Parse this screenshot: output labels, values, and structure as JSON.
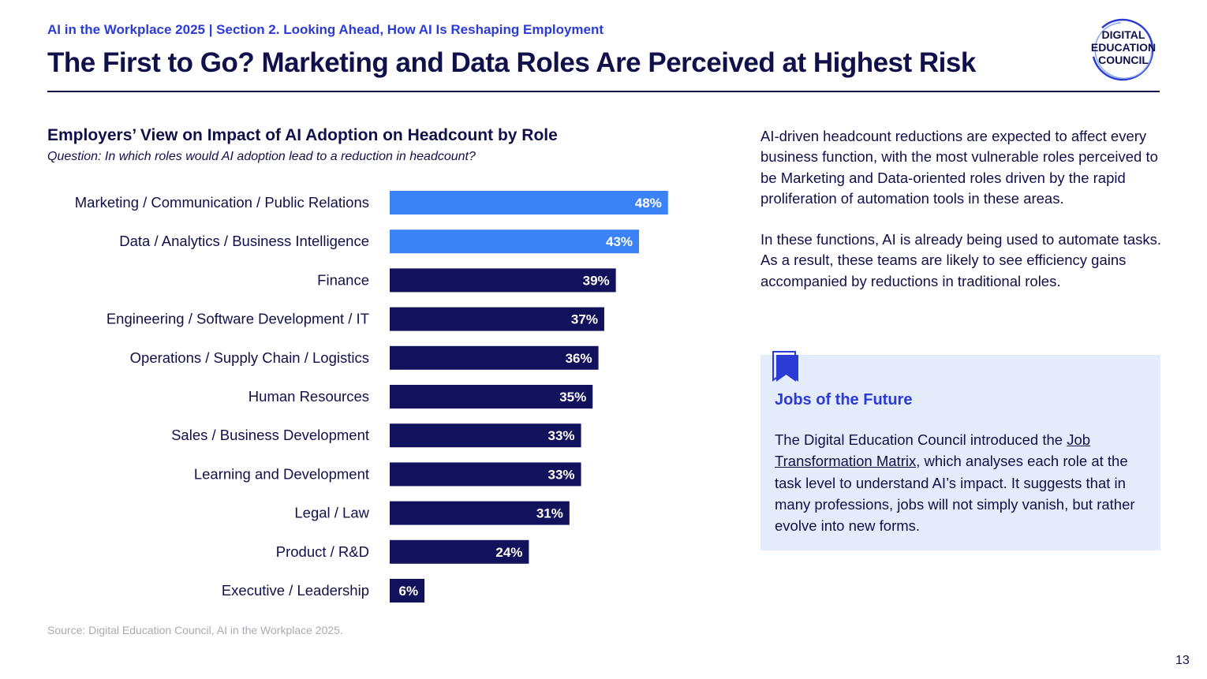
{
  "header": {
    "breadcrumb": "AI in the Workplace 2025 | Section 2. Looking Ahead, How AI Is Reshaping Employment",
    "title": "The First to Go? Marketing and Data Roles Are Perceived at Highest Risk"
  },
  "logo": {
    "line1": "DIGITAL",
    "line2": "EDUCATION",
    "line3": "COUNCIL"
  },
  "chart_data": {
    "type": "bar",
    "orientation": "horizontal",
    "title": "Employers’ View on Impact of AI Adoption on Headcount by Role",
    "subtitle": "Question: In which roles would AI adoption lead to a reduction in headcount?",
    "xlabel": "",
    "ylabel": "",
    "xlim": [
      0,
      100
    ],
    "grid": false,
    "categories": [
      "Marketing / Communication / Public Relations",
      "Data / Analytics / Business Intelligence",
      "Finance",
      "Engineering / Software Development / IT",
      "Operations / Supply Chain / Logistics",
      "Human Resources",
      "Sales / Business Development",
      "Learning and Development",
      "Legal / Law",
      "Product / R&D",
      "Executive / Leadership"
    ],
    "values": [
      48,
      43,
      39,
      37,
      36,
      35,
      33,
      33,
      31,
      24,
      6
    ],
    "data_labels": [
      "48%",
      "43%",
      "39%",
      "37%",
      "36%",
      "35%",
      "33%",
      "33%",
      "31%",
      "24%",
      "6%"
    ],
    "highlighted": [
      true,
      true,
      false,
      false,
      false,
      false,
      false,
      false,
      false,
      false,
      false
    ],
    "colors": {
      "highlight": "#3b82f6",
      "default": "#12125c",
      "label": "#ffffff",
      "category": "#10104a"
    },
    "source": "Source: Digital Education Council, AI in the Workplace 2025."
  },
  "body": {
    "paragraph1": "AI-driven headcount reductions are expected to affect every business function, with the most vulnerable roles perceived to be Marketing and Data-oriented roles driven by the rapid proliferation of automation tools in these areas.",
    "paragraph2": "In these functions, AI is already being used to automate tasks. As a result, these teams are likely to see efficiency gains accompanied by reductions in traditional roles."
  },
  "callout": {
    "icon": "bookmark-icon",
    "title": "Jobs of the Future",
    "text_before": "The Digital Education Council introduced the ",
    "link": "Job Transformation Matrix",
    "text_after": ", which analyses each role at the task level to understand AI’s impact. It suggests that in many professions, jobs will not simply vanish, but rather evolve into new forms."
  },
  "page_number": "13"
}
